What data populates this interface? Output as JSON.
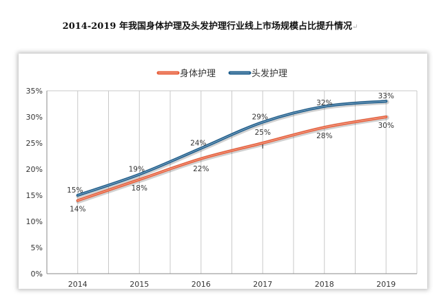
{
  "chart_data": {
    "type": "line",
    "title": "2014-2019 年我国身体护理及头发护理行业线上市场规模占比提升情况",
    "categories": [
      "2014",
      "2015",
      "2016",
      "2017",
      "2018",
      "2019"
    ],
    "series": [
      {
        "name": "身体护理",
        "values": [
          14,
          18,
          22,
          25,
          28,
          30
        ],
        "labels": [
          "14%",
          "18%",
          "22%",
          "25%",
          "28%",
          "30%"
        ],
        "color": "#E8603C"
      },
      {
        "name": "头发护理",
        "values": [
          15,
          19,
          24,
          29,
          32,
          33
        ],
        "labels": [
          "15%",
          "19%",
          "24%",
          "29%",
          "32%",
          "33%"
        ],
        "color": "#1F5F8E"
      }
    ],
    "ylim": [
      0,
      35
    ],
    "yticks": [
      "0%",
      "5%",
      "10%",
      "15%",
      "20%",
      "25%",
      "30%",
      "35%"
    ],
    "grid": "vertical",
    "legend": "top-center",
    "smooth": true
  }
}
